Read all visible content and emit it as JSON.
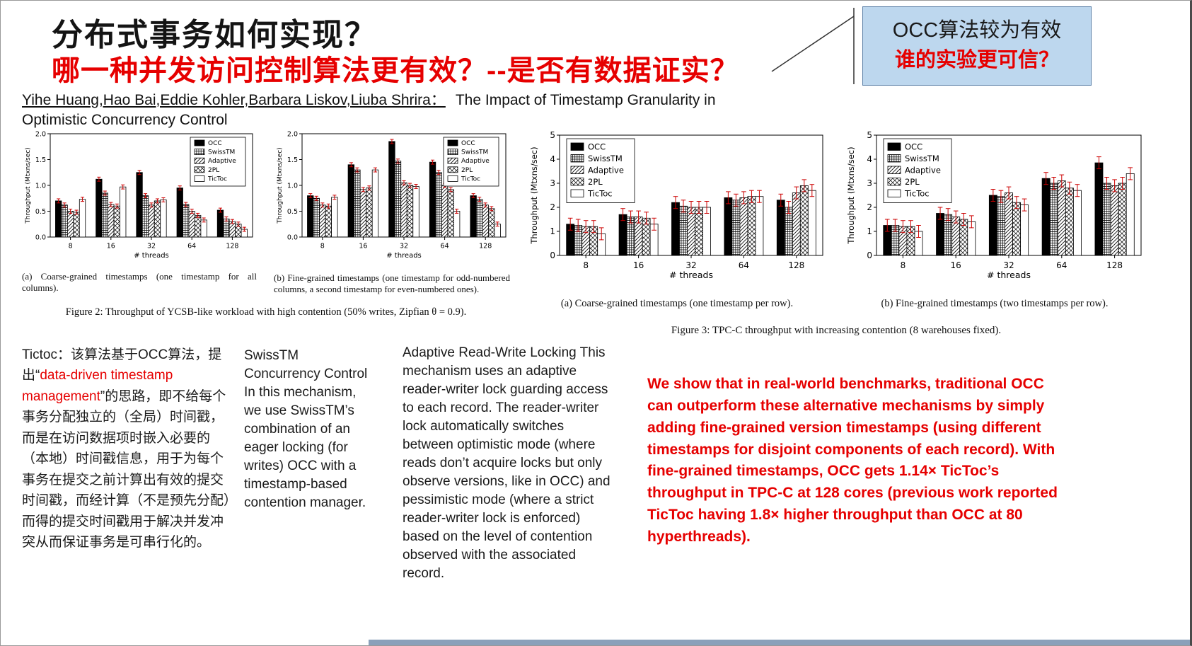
{
  "slide": {
    "title": "分布式事务如何实现？",
    "subtitle": "哪一种并发访问控制算法更有效？--是否有数据证实？",
    "callout": {
      "line1": "OCC算法较为有效",
      "line2": "谁的实验更可信？"
    },
    "authors_names": "Yihe Huang,Hao Bai,Eddie Kohler,Barbara Liskov,Liuba Shrira：",
    "paper_title_line1": "The Impact of Timestamp Granularity in",
    "paper_title_line2": "Optimistic Concurrency Control"
  },
  "captions": {
    "fig2a": "(a) Coarse-grained timestamps (one timestamp for all columns).",
    "fig2b": "(b) Fine-grained timestamps (one timestamp for odd-numbered columns, a second timestamp for even-numbered ones).",
    "fig2": "Figure 2: Throughput of YCSB-like workload with high contention (50% writes, Zipfian θ = 0.9).",
    "fig3a": "(a) Coarse-grained timestamps (one timestamp per row).",
    "fig3b": "(b) Fine-grained timestamps (two timestamps per row).",
    "fig3": "Figure 3: TPC-C throughput with increasing contention (8 warehouses fixed)."
  },
  "notes": {
    "tictoc": {
      "prefix": "Tictoc：该算法基于OCC算法，提出“",
      "highlight": "data-driven timestamp management",
      "suffix": "”的思路，即不给每个事务分配独立的（全局）时间戳，而是在访问数据项时嵌入必要的（本地）时间戳信息，用于为每个事务在提交之前计算出有效的提交时间戳，而经计算（不是预先分配）而得的提交时间戳用于解决并发冲突从而保证事务是可串行化的。"
    },
    "swisstm_text": "SwissTM Concurrency Control In this mechanism, we use SwissTM’s combination of an eager locking (for writes) OCC with a timestamp-based contention manager.",
    "adaptive_text": "Adaptive Read-Write Locking This mechanism uses an adaptive reader-writer lock guarding access to each record. The reader-writer lock automatically switches between optimistic mode (where reads don’t acquire locks but only observe versions, like in OCC) and pessimistic mode (where a strict reader-writer lock is enforced) based on the level of contention observed with the associated record.",
    "conclusion_text": "We show that in real-world benchmarks, traditional OCC can outperform these alternative mechanisms by simply adding fine-grained version timestamps (using different timestamps for disjoint components of each record). With fine-grained timestamps, OCC gets 1.14× TicToc’s throughput in TPC-C at 128 cores (previous work reported TicToc having 1.8× higher throughput than OCC at 80 hyperthreads)."
  },
  "colors": {
    "accent_red": "#e60000",
    "callout_bg": "#bdd7ee",
    "error_bar_red": "#cc0000",
    "footer_bar": "#8aa0ba"
  },
  "chart_data": [
    {
      "id": "figure-2a",
      "type": "bar",
      "title": "",
      "xlabel": "# threads",
      "ylabel": "Throughput (Mtxns/sec)",
      "categories": [
        "8",
        "16",
        "32",
        "64",
        "128"
      ],
      "ylim": [
        0,
        2.0
      ],
      "yticks": [
        0,
        0.5,
        1.0,
        1.5,
        2.0
      ],
      "legend_position": "top-right",
      "err_frac": 0.02,
      "grid": false,
      "series": [
        {
          "name": "OCC",
          "values": [
            0.7,
            1.12,
            1.25,
            0.95,
            0.52
          ]
        },
        {
          "name": "SwissTM",
          "values": [
            0.62,
            0.85,
            0.8,
            0.63,
            0.35
          ]
        },
        {
          "name": "Adaptive",
          "values": [
            0.5,
            0.63,
            0.62,
            0.5,
            0.3
          ]
        },
        {
          "name": "2PL",
          "values": [
            0.48,
            0.6,
            0.7,
            0.42,
            0.25
          ]
        },
        {
          "name": "TicToc",
          "values": [
            0.73,
            0.97,
            0.72,
            0.33,
            0.15
          ]
        }
      ]
    },
    {
      "id": "figure-2b",
      "type": "bar",
      "title": "",
      "xlabel": "# threads",
      "ylabel": "Throughput (Mtxns/sec)",
      "categories": [
        "8",
        "16",
        "32",
        "64",
        "128"
      ],
      "ylim": [
        0,
        2.0
      ],
      "yticks": [
        0,
        0.5,
        1.0,
        1.5,
        2.0
      ],
      "legend_position": "top-right",
      "err_frac": 0.02,
      "grid": false,
      "series": [
        {
          "name": "OCC",
          "values": [
            0.8,
            1.4,
            1.85,
            1.45,
            0.8
          ]
        },
        {
          "name": "SwissTM",
          "values": [
            0.75,
            1.3,
            1.47,
            1.25,
            0.73
          ]
        },
        {
          "name": "Adaptive",
          "values": [
            0.62,
            0.92,
            1.05,
            1.0,
            0.62
          ]
        },
        {
          "name": "2PL",
          "values": [
            0.6,
            0.95,
            1.0,
            0.92,
            0.55
          ]
        },
        {
          "name": "TicToc",
          "values": [
            0.77,
            1.3,
            0.98,
            0.5,
            0.25
          ]
        }
      ]
    },
    {
      "id": "figure-3a",
      "type": "bar",
      "title": "",
      "xlabel": "# threads",
      "ylabel": "Throughput (Mtxns/sec)",
      "categories": [
        "8",
        "16",
        "32",
        "64",
        "128"
      ],
      "ylim": [
        0,
        5
      ],
      "yticks": [
        0,
        1,
        2,
        3,
        4,
        5
      ],
      "legend_position": "top-left",
      "err_frac": 0.05,
      "grid": false,
      "series": [
        {
          "name": "OCC",
          "values": [
            1.3,
            1.7,
            2.2,
            2.4,
            2.3
          ]
        },
        {
          "name": "SwissTM",
          "values": [
            1.25,
            1.6,
            2.05,
            2.3,
            2.0
          ]
        },
        {
          "name": "Adaptive",
          "values": [
            1.2,
            1.6,
            2.0,
            2.4,
            2.6
          ]
        },
        {
          "name": "2PL",
          "values": [
            1.2,
            1.55,
            2.0,
            2.45,
            2.9
          ]
        },
        {
          "name": "TicToc",
          "values": [
            0.9,
            1.3,
            2.0,
            2.45,
            2.7
          ]
        }
      ]
    },
    {
      "id": "figure-3b",
      "type": "bar",
      "title": "",
      "xlabel": "# threads",
      "ylabel": "Throughput (Mtxns/sec)",
      "categories": [
        "8",
        "16",
        "32",
        "64",
        "128"
      ],
      "ylim": [
        0,
        5
      ],
      "yticks": [
        0,
        1,
        2,
        3,
        4,
        5
      ],
      "legend_position": "top-left",
      "err_frac": 0.05,
      "grid": false,
      "series": [
        {
          "name": "OCC",
          "values": [
            1.25,
            1.75,
            2.5,
            3.2,
            3.85
          ]
        },
        {
          "name": "SwissTM",
          "values": [
            1.25,
            1.7,
            2.45,
            3.0,
            3.0
          ]
        },
        {
          "name": "Adaptive",
          "values": [
            1.2,
            1.6,
            2.6,
            3.1,
            2.9
          ]
        },
        {
          "name": "2PL",
          "values": [
            1.2,
            1.5,
            2.2,
            2.8,
            3.0
          ]
        },
        {
          "name": "TicToc",
          "values": [
            1.0,
            1.4,
            2.1,
            2.7,
            3.4
          ]
        }
      ]
    }
  ]
}
